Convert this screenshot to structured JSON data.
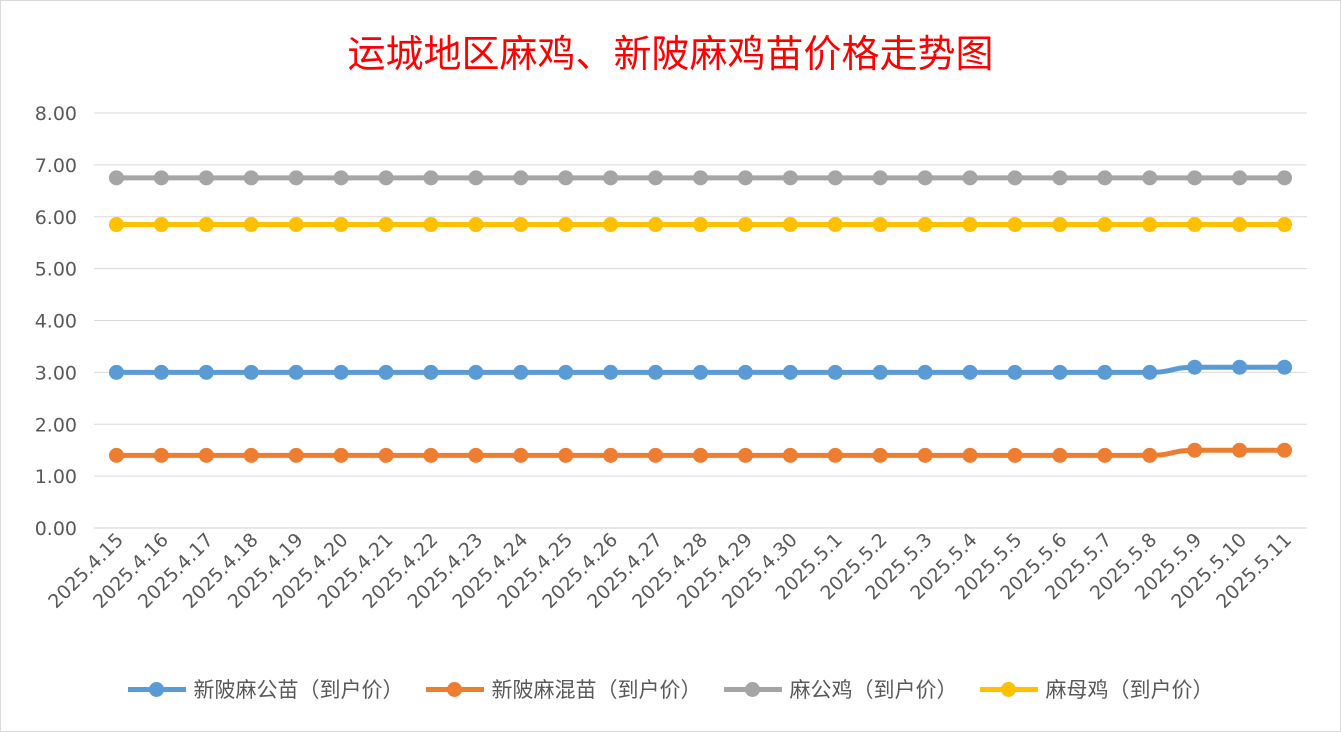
{
  "chart_data": {
    "type": "line",
    "title": "运城地区麻鸡、新陂麻鸡苗价格走势图",
    "title_color": "#ff0000",
    "categories": [
      "2025.4.15",
      "2025.4.16",
      "2025.4.17",
      "2025.4.18",
      "2025.4.19",
      "2025.4.20",
      "2025.4.21",
      "2025.4.22",
      "2025.4.23",
      "2025.4.24",
      "2025.4.25",
      "2025.4.26",
      "2025.4.27",
      "2025.4.28",
      "2025.4.29",
      "2025.4.30",
      "2025.5.1",
      "2025.5.2",
      "2025.5.3",
      "2025.5.4",
      "2025.5.5",
      "2025.5.6",
      "2025.5.7",
      "2025.5.8",
      "2025.5.9",
      "2025.5.10",
      "2025.5.11"
    ],
    "ylim": [
      0,
      8
    ],
    "yticks": [
      "0.00",
      "1.00",
      "2.00",
      "3.00",
      "4.00",
      "5.00",
      "6.00",
      "7.00",
      "8.00"
    ],
    "grid": true,
    "legend_position": "bottom",
    "series": [
      {
        "name": "新陂麻公苗（到户价）",
        "color": "#5b9bd5",
        "values": [
          3.0,
          3.0,
          3.0,
          3.0,
          3.0,
          3.0,
          3.0,
          3.0,
          3.0,
          3.0,
          3.0,
          3.0,
          3.0,
          3.0,
          3.0,
          3.0,
          3.0,
          3.0,
          3.0,
          3.0,
          3.0,
          3.0,
          3.0,
          3.0,
          3.1,
          3.1,
          3.1
        ]
      },
      {
        "name": "新陂麻混苗（到户价）",
        "color": "#ed7d31",
        "values": [
          1.4,
          1.4,
          1.4,
          1.4,
          1.4,
          1.4,
          1.4,
          1.4,
          1.4,
          1.4,
          1.4,
          1.4,
          1.4,
          1.4,
          1.4,
          1.4,
          1.4,
          1.4,
          1.4,
          1.4,
          1.4,
          1.4,
          1.4,
          1.4,
          1.5,
          1.5,
          1.5
        ]
      },
      {
        "name": "麻公鸡（到户价）",
        "color": "#a5a5a5",
        "values": [
          6.75,
          6.75,
          6.75,
          6.75,
          6.75,
          6.75,
          6.75,
          6.75,
          6.75,
          6.75,
          6.75,
          6.75,
          6.75,
          6.75,
          6.75,
          6.75,
          6.75,
          6.75,
          6.75,
          6.75,
          6.75,
          6.75,
          6.75,
          6.75,
          6.75,
          6.75,
          6.75
        ]
      },
      {
        "name": "麻母鸡（到户价）",
        "color": "#ffc000",
        "values": [
          5.85,
          5.85,
          5.85,
          5.85,
          5.85,
          5.85,
          5.85,
          5.85,
          5.85,
          5.85,
          5.85,
          5.85,
          5.85,
          5.85,
          5.85,
          5.85,
          5.85,
          5.85,
          5.85,
          5.85,
          5.85,
          5.85,
          5.85,
          5.85,
          5.85,
          5.85,
          5.85
        ]
      }
    ]
  }
}
